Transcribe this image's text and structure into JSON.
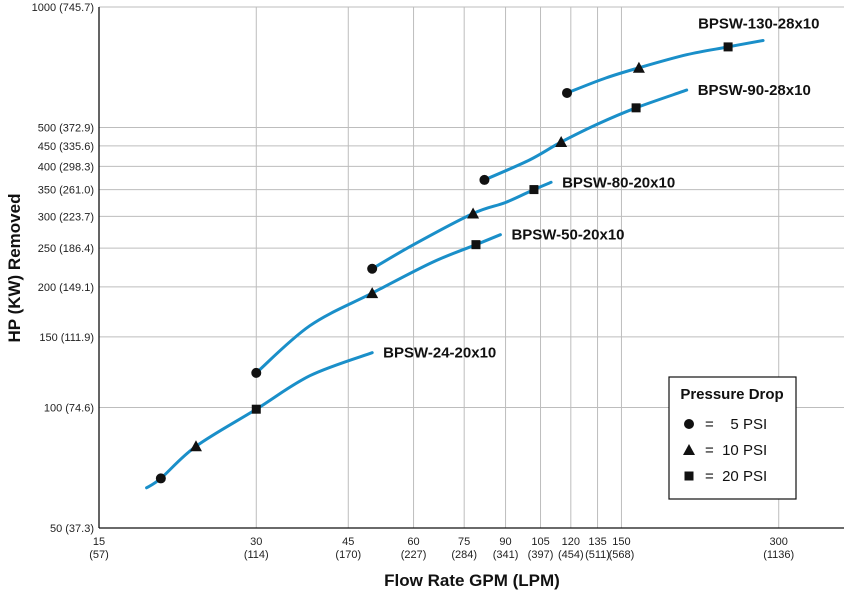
{
  "chart_data": {
    "type": "line",
    "xlabel": "Flow Rate GPM (LPM)",
    "ylabel": "HP (KW) Removed",
    "x_scale": "log",
    "y_scale": "log",
    "xlim": [
      15,
      400
    ],
    "ylim": [
      50,
      1000
    ],
    "x_ticks": [
      {
        "value": 15,
        "line1": "15",
        "line2": "(57)"
      },
      {
        "value": 30,
        "line1": "30",
        "line2": "(114)"
      },
      {
        "value": 45,
        "line1": "45",
        "line2": "(170)"
      },
      {
        "value": 60,
        "line1": "60",
        "line2": "(227)"
      },
      {
        "value": 75,
        "line1": "75",
        "line2": "(284)"
      },
      {
        "value": 90,
        "line1": "90",
        "line2": "(341)"
      },
      {
        "value": 105,
        "line1": "105",
        "line2": "(397)"
      },
      {
        "value": 120,
        "line1": "120",
        "line2": "(454)"
      },
      {
        "value": 135,
        "line1": "135",
        "line2": "(511)"
      },
      {
        "value": 150,
        "line1": "150",
        "line2": "(568)"
      },
      {
        "value": 300,
        "line1": "300",
        "line2": "(1136)"
      }
    ],
    "y_ticks": [
      {
        "value": 50,
        "label": "50 (37.3)"
      },
      {
        "value": 100,
        "label": "100 (74.6)"
      },
      {
        "value": 150,
        "label": "150 (111.9)"
      },
      {
        "value": 200,
        "label": "200 (149.1)"
      },
      {
        "value": 250,
        "label": "250 (186.4)"
      },
      {
        "value": 300,
        "label": "300 (223.7)"
      },
      {
        "value": 350,
        "label": "350 (261.0)"
      },
      {
        "value": 400,
        "label": "400 (298.3)"
      },
      {
        "value": 450,
        "label": "450 (335.6)"
      },
      {
        "value": 500,
        "label": "500 (372.9)"
      },
      {
        "value": 1000,
        "label": "1000 (745.7)"
      }
    ],
    "grid": true,
    "line_color": "#1a8fc9",
    "series": [
      {
        "name": "BPSW-24-20x10",
        "curve": [
          [
            18.5,
            63
          ],
          [
            19.7,
            66.5
          ],
          [
            23,
            80
          ],
          [
            30,
            99
          ],
          [
            38,
            120
          ],
          [
            50,
            137
          ]
        ],
        "markers": [
          {
            "x": 19.7,
            "y": 66.5,
            "shape": "circle"
          },
          {
            "x": 23,
            "y": 80,
            "shape": "triangle"
          },
          {
            "x": 30,
            "y": 99,
            "shape": "square"
          }
        ]
      },
      {
        "name": "BPSW-50-20x10",
        "curve": [
          [
            30,
            122
          ],
          [
            38,
            160
          ],
          [
            50,
            193
          ],
          [
            65,
            230
          ],
          [
            79,
            255
          ],
          [
            88,
            270
          ]
        ],
        "markers": [
          {
            "x": 30,
            "y": 122,
            "shape": "circle"
          },
          {
            "x": 50,
            "y": 193,
            "shape": "triangle"
          },
          {
            "x": 79,
            "y": 255,
            "shape": "square"
          }
        ]
      },
      {
        "name": "BPSW-80-20x10",
        "curve": [
          [
            50,
            222
          ],
          [
            60,
            255
          ],
          [
            78,
            305
          ],
          [
            90,
            325
          ],
          [
            102,
            350
          ],
          [
            110,
            365
          ]
        ],
        "markers": [
          {
            "x": 50,
            "y": 222,
            "shape": "circle"
          },
          {
            "x": 78,
            "y": 305,
            "shape": "triangle"
          },
          {
            "x": 102,
            "y": 350,
            "shape": "square"
          }
        ]
      },
      {
        "name": "BPSW-90-28x10",
        "curve": [
          [
            82,
            370
          ],
          [
            100,
            415
          ],
          [
            115,
            460
          ],
          [
            135,
            510
          ],
          [
            160,
            560
          ],
          [
            200,
            620
          ]
        ],
        "markers": [
          {
            "x": 82,
            "y": 370,
            "shape": "circle"
          },
          {
            "x": 115,
            "y": 460,
            "shape": "triangle"
          },
          {
            "x": 160,
            "y": 560,
            "shape": "square"
          }
        ]
      },
      {
        "name": "BPSW-130-28x10",
        "curve": [
          [
            118,
            610
          ],
          [
            140,
            665
          ],
          [
            162,
            705
          ],
          [
            200,
            760
          ],
          [
            240,
            795
          ],
          [
            280,
            825
          ]
        ],
        "markers": [
          {
            "x": 118,
            "y": 610,
            "shape": "circle"
          },
          {
            "x": 162,
            "y": 705,
            "shape": "triangle"
          },
          {
            "x": 240,
            "y": 795,
            "shape": "square"
          }
        ]
      }
    ],
    "legend": {
      "title": "Pressure Drop",
      "placement": "bottom-right",
      "items": [
        {
          "shape": "circle",
          "label": "=    5 PSI"
        },
        {
          "shape": "triangle",
          "label": "=  10 PSI"
        },
        {
          "shape": "square",
          "label": "=  20 PSI"
        }
      ]
    }
  }
}
